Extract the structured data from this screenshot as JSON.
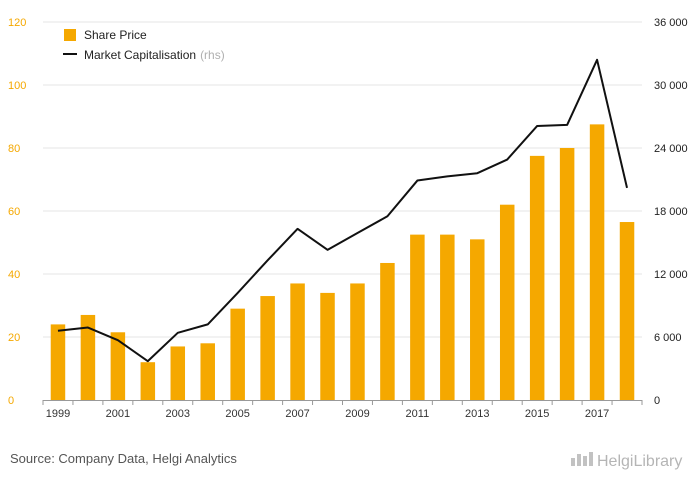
{
  "chart_data": {
    "type": "bar+line",
    "categories": [
      "1999",
      "2000",
      "2001",
      "2002",
      "2003",
      "2004",
      "2005",
      "2006",
      "2007",
      "2008",
      "2009",
      "2010",
      "2011",
      "2012",
      "2013",
      "2014",
      "2015",
      "2016",
      "2017",
      "2018"
    ],
    "x_tick_labels": [
      "1999",
      "2001",
      "2003",
      "2005",
      "2007",
      "2009",
      "2011",
      "2013",
      "2015",
      "2017"
    ],
    "series": [
      {
        "name": "Share Price",
        "type": "bar",
        "axis": "left",
        "color": "#f5a800",
        "values": [
          24,
          27,
          21.5,
          12,
          17,
          18,
          29,
          33,
          37,
          34,
          37,
          43.5,
          52.5,
          52.5,
          51,
          62,
          77.5,
          80,
          87.5,
          56.5
        ]
      },
      {
        "name": "Market Capitalisation",
        "name_suffix": "(rhs)",
        "type": "line",
        "axis": "right",
        "color": "#111111",
        "values": [
          6600,
          6900,
          5700,
          3700,
          6400,
          7200,
          10200,
          13300,
          16300,
          14300,
          15900,
          17500,
          20900,
          21300,
          21600,
          22900,
          26100,
          26200,
          32400,
          20200
        ]
      }
    ],
    "y_left": {
      "min": 0,
      "max": 120,
      "ticks": [
        0,
        20,
        40,
        60,
        80,
        100,
        120
      ],
      "tick_labels": [
        "0",
        "20",
        "40",
        "60",
        "80",
        "100",
        "120"
      ]
    },
    "y_right": {
      "min": 0,
      "max": 36000,
      "ticks": [
        0,
        6000,
        12000,
        18000,
        24000,
        30000,
        36000
      ],
      "tick_labels": [
        "0",
        "6 000",
        "12 000",
        "18 000",
        "24 000",
        "30 000",
        "36 000"
      ]
    },
    "legend_position": "top-left",
    "grid": "horizontal"
  },
  "footer": {
    "source": "Source: Company Data, Helgi Analytics",
    "brand": "HelgiLibrary"
  }
}
